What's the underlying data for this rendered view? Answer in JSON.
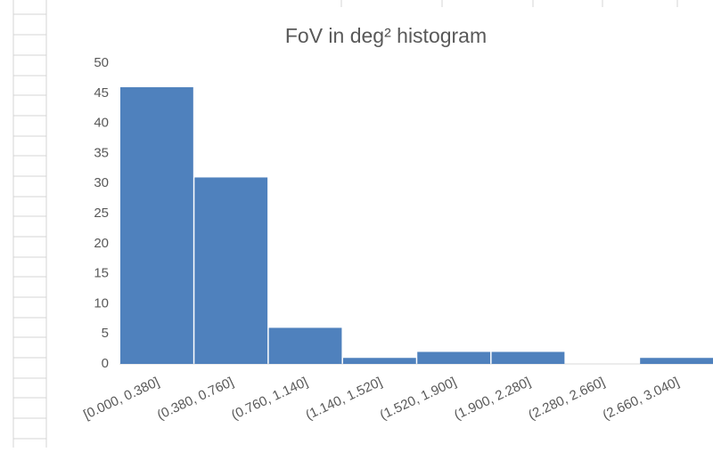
{
  "chart_data": {
    "type": "bar",
    "title": "FoV in deg² histogram",
    "categories": [
      "[0.000, 0.380]",
      "(0.380, 0.760]",
      "(0.760, 1.140]",
      "(1.140, 1.520]",
      "(1.520, 1.900]",
      "(1.900, 2.280]",
      "(2.280, 2.660]",
      "(2.660, 3.040]"
    ],
    "values": [
      46,
      31,
      6,
      1,
      2,
      2,
      0,
      1
    ],
    "color": "#4f81bd",
    "ylim": [
      0,
      50
    ],
    "yticks": [
      0,
      5,
      10,
      15,
      20,
      25,
      30,
      35,
      40,
      45,
      50
    ],
    "grid": false
  }
}
